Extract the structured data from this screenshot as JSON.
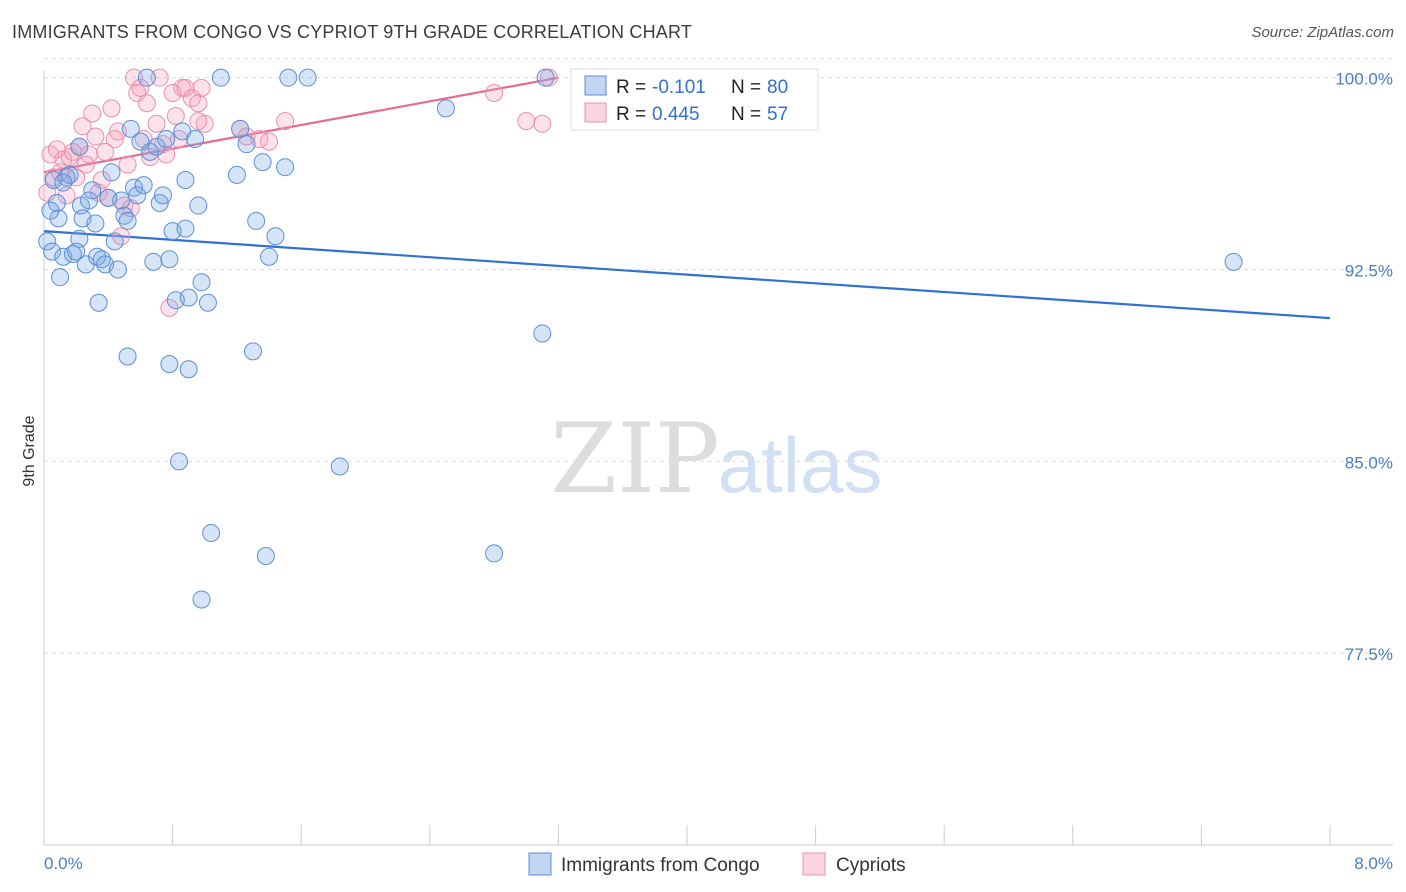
{
  "title": "IMMIGRANTS FROM CONGO VS CYPRIOT 9TH GRADE CORRELATION CHART",
  "source": "Source: ZipAtlas.com",
  "watermark": {
    "zip": "ZIP",
    "atlas": "atlas"
  },
  "colors": {
    "blue_fill": "rgba(120,165,230,0.30)",
    "blue_stroke": "#5b8fd8",
    "blue_line": "#2f72d0",
    "pink_fill": "rgba(245,160,185,0.30)",
    "pink_stroke": "#ec8fae",
    "pink_line": "#e46a93",
    "tick_text": "#4a7cc6",
    "grid": "#dddddd"
  },
  "chart_data": {
    "type": "scatter",
    "xlabel": "",
    "ylabel": "9th Grade",
    "xlim": [
      0.0,
      8.0
    ],
    "ylim": [
      70.0,
      100.3
    ],
    "x_tick_labels": [
      "0.0%",
      "8.0%"
    ],
    "y_ticks": [
      77.5,
      85.0,
      92.5,
      100.0
    ],
    "y_tick_labels": [
      "77.5%",
      "85.0%",
      "92.5%",
      "100.0%"
    ],
    "grid": true,
    "legend_stats": [
      {
        "r_label": "R = ",
        "r_value": "-0.101",
        "n_label": "N = ",
        "n_value": "80"
      },
      {
        "r_label": "R = ",
        "r_value": "0.445",
        "n_label": "N = ",
        "n_value": "57"
      }
    ],
    "series": [
      {
        "name": "Immigrants from Congo",
        "trend": {
          "x": [
            0.0,
            8.0
          ],
          "y": [
            94.0,
            90.6
          ]
        },
        "points": [
          [
            0.02,
            93.6
          ],
          [
            0.05,
            93.2
          ],
          [
            0.06,
            96.0
          ],
          [
            0.08,
            95.1
          ],
          [
            0.09,
            94.5
          ],
          [
            0.1,
            92.2
          ],
          [
            0.12,
            93.0
          ],
          [
            0.14,
            96.1
          ],
          [
            0.16,
            96.2
          ],
          [
            0.18,
            93.1
          ],
          [
            0.2,
            93.2
          ],
          [
            0.22,
            97.3
          ],
          [
            0.23,
            95.0
          ],
          [
            0.24,
            94.5
          ],
          [
            0.26,
            92.7
          ],
          [
            0.28,
            95.2
          ],
          [
            0.3,
            95.6
          ],
          [
            0.32,
            94.3
          ],
          [
            0.33,
            93.0
          ],
          [
            0.34,
            91.2
          ],
          [
            0.36,
            92.9
          ],
          [
            0.38,
            92.7
          ],
          [
            0.4,
            95.3
          ],
          [
            0.42,
            96.3
          ],
          [
            0.44,
            93.6
          ],
          [
            0.46,
            92.5
          ],
          [
            0.48,
            95.2
          ],
          [
            0.5,
            94.6
          ],
          [
            0.52,
            94.4
          ],
          [
            0.54,
            98.0
          ],
          [
            0.52,
            89.1
          ],
          [
            0.56,
            95.7
          ],
          [
            0.58,
            95.4
          ],
          [
            0.6,
            97.5
          ],
          [
            0.62,
            95.8
          ],
          [
            0.64,
            100.0
          ],
          [
            0.66,
            97.1
          ],
          [
            0.68,
            92.8
          ],
          [
            0.7,
            97.3
          ],
          [
            0.72,
            95.1
          ],
          [
            0.74,
            95.4
          ],
          [
            0.76,
            97.6
          ],
          [
            0.78,
            92.9
          ],
          [
            0.8,
            94.0
          ],
          [
            0.78,
            88.8
          ],
          [
            0.82,
            91.3
          ],
          [
            0.84,
            85.0
          ],
          [
            0.86,
            97.9
          ],
          [
            0.88,
            94.1
          ],
          [
            0.88,
            96.0
          ],
          [
            0.9,
            91.4
          ],
          [
            0.9,
            88.6
          ],
          [
            0.94,
            97.6
          ],
          [
            0.96,
            95.0
          ],
          [
            0.98,
            92.0
          ],
          [
            0.98,
            79.6
          ],
          [
            1.02,
            91.2
          ],
          [
            1.04,
            82.2
          ],
          [
            1.1,
            100.0
          ],
          [
            1.2,
            96.2
          ],
          [
            1.22,
            98.0
          ],
          [
            1.26,
            97.4
          ],
          [
            1.3,
            89.3
          ],
          [
            1.32,
            94.4
          ],
          [
            1.36,
            96.7
          ],
          [
            1.38,
            81.3
          ],
          [
            1.4,
            93.0
          ],
          [
            1.44,
            93.8
          ],
          [
            1.5,
            96.5
          ],
          [
            1.52,
            100.0
          ],
          [
            1.64,
            100.0
          ],
          [
            1.84,
            84.8
          ],
          [
            2.5,
            98.8
          ],
          [
            2.8,
            81.4
          ],
          [
            3.1,
            90.0
          ],
          [
            3.12,
            100.0
          ],
          [
            7.4,
            92.8
          ],
          [
            0.04,
            94.8
          ],
          [
            0.12,
            95.9
          ],
          [
            0.22,
            93.7
          ]
        ]
      },
      {
        "name": "Cypriots",
        "trend": {
          "x": [
            0.0,
            3.2
          ],
          "y": [
            96.3,
            100.0
          ]
        },
        "points": [
          [
            0.02,
            95.5
          ],
          [
            0.04,
            97.0
          ],
          [
            0.06,
            96.1
          ],
          [
            0.08,
            97.2
          ],
          [
            0.1,
            96.3
          ],
          [
            0.12,
            96.8
          ],
          [
            0.14,
            95.4
          ],
          [
            0.16,
            96.9
          ],
          [
            0.18,
            97.1
          ],
          [
            0.2,
            96.1
          ],
          [
            0.22,
            97.3
          ],
          [
            0.24,
            98.1
          ],
          [
            0.26,
            96.6
          ],
          [
            0.28,
            97.0
          ],
          [
            0.3,
            98.6
          ],
          [
            0.32,
            97.7
          ],
          [
            0.34,
            95.5
          ],
          [
            0.36,
            96.0
          ],
          [
            0.38,
            97.1
          ],
          [
            0.4,
            95.3
          ],
          [
            0.42,
            98.8
          ],
          [
            0.44,
            97.6
          ],
          [
            0.46,
            97.9
          ],
          [
            0.48,
            93.8
          ],
          [
            0.5,
            95.0
          ],
          [
            0.52,
            96.6
          ],
          [
            0.54,
            94.9
          ],
          [
            0.56,
            100.0
          ],
          [
            0.58,
            99.4
          ],
          [
            0.6,
            99.6
          ],
          [
            0.62,
            97.6
          ],
          [
            0.64,
            99.0
          ],
          [
            0.66,
            96.9
          ],
          [
            0.7,
            98.2
          ],
          [
            0.72,
            100.0
          ],
          [
            0.74,
            97.4
          ],
          [
            0.76,
            97.0
          ],
          [
            0.78,
            91.0
          ],
          [
            0.8,
            99.4
          ],
          [
            0.82,
            98.5
          ],
          [
            0.84,
            97.6
          ],
          [
            0.86,
            99.6
          ],
          [
            0.88,
            99.6
          ],
          [
            0.92,
            99.2
          ],
          [
            0.96,
            99.0
          ],
          [
            0.98,
            99.6
          ],
          [
            1.0,
            98.2
          ],
          [
            1.22,
            98.0
          ],
          [
            1.26,
            97.7
          ],
          [
            1.34,
            97.6
          ],
          [
            1.4,
            97.5
          ],
          [
            1.5,
            98.3
          ],
          [
            2.8,
            99.4
          ],
          [
            3.0,
            98.3
          ],
          [
            3.1,
            98.2
          ],
          [
            3.14,
            100.0
          ],
          [
            0.96,
            98.3
          ]
        ]
      }
    ]
  }
}
